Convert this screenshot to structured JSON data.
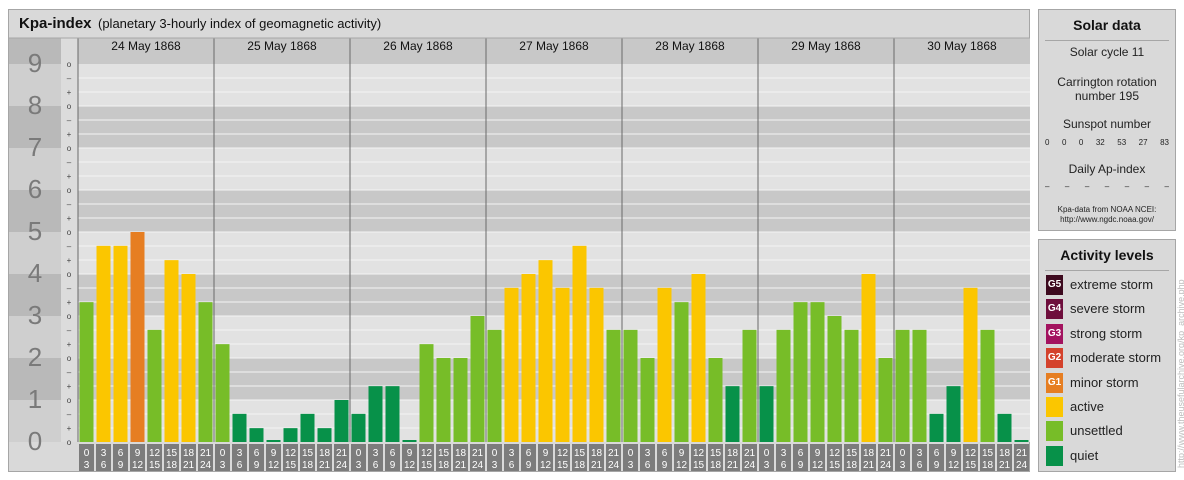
{
  "header": {
    "title": "Kpa-index",
    "subtitle": "(planetary 3-hourly index of geomagnetic activity)"
  },
  "chart_data": {
    "type": "bar",
    "y_ticks": [
      "0",
      "1",
      "2",
      "3",
      "4",
      "5",
      "6",
      "7",
      "8",
      "9"
    ],
    "sub_ticks": [
      "o",
      "+",
      "–"
    ],
    "ylim": [
      0,
      9
    ],
    "days": [
      "24 May 1868",
      "25 May 1868",
      "26 May 1868",
      "27 May 1868",
      "28 May 1868",
      "29 May 1868",
      "30 May 1868"
    ],
    "hour_labels": [
      [
        "0",
        "3"
      ],
      [
        "3",
        "6"
      ],
      [
        "6",
        "9"
      ],
      [
        "9",
        "12"
      ],
      [
        "12",
        "15"
      ],
      [
        "15",
        "18"
      ],
      [
        "18",
        "21"
      ],
      [
        "21",
        "24"
      ]
    ],
    "values": [
      [
        3.33,
        4.67,
        4.67,
        5.0,
        2.67,
        4.33,
        4.0,
        3.33
      ],
      [
        2.33,
        0.67,
        0.33,
        0.0,
        0.33,
        0.67,
        0.33,
        1.0
      ],
      [
        0.67,
        1.33,
        1.33,
        0.0,
        2.33,
        2.0,
        2.0,
        3.0
      ],
      [
        2.67,
        3.67,
        4.0,
        4.33,
        3.67,
        4.67,
        3.67,
        2.67
      ],
      [
        2.67,
        2.0,
        3.67,
        3.33,
        4.0,
        2.0,
        1.33,
        2.67
      ],
      [
        1.33,
        2.67,
        3.33,
        3.33,
        3.0,
        2.67,
        4.0,
        2.0
      ],
      [
        2.67,
        2.67,
        0.67,
        1.33,
        3.67,
        2.67,
        0.67,
        0.0
      ]
    ]
  },
  "solar": {
    "title": "Solar data",
    "cycle": "Solar cycle 11",
    "carrington_line1": "Carrington rotation",
    "carrington_line2": "number 195",
    "sunspot_title": "Sunspot number",
    "sunspots": [
      "0",
      "0",
      "0",
      "32",
      "53",
      "27",
      "83"
    ],
    "ap_title": "Daily Ap-index",
    "ap": [
      "–",
      "–",
      "–",
      "–",
      "–",
      "–",
      "–"
    ],
    "source_line1": "Kpa-data from NOAA NCEI:",
    "source_line2": "http://www.ngdc.noaa.gov/"
  },
  "legend": {
    "title": "Activity levels",
    "items": [
      {
        "badge": "G5",
        "label": "extreme storm",
        "color": "#3d0a1f"
      },
      {
        "badge": "G4",
        "label": "severe storm",
        "color": "#6e0e3c"
      },
      {
        "badge": "G3",
        "label": "strong storm",
        "color": "#a3135f"
      },
      {
        "badge": "G2",
        "label": "moderate storm",
        "color": "#d4422c"
      },
      {
        "badge": "G1",
        "label": "minor storm",
        "color": "#e67e22"
      },
      {
        "badge": "",
        "label": "active",
        "color": "#fbc600"
      },
      {
        "badge": "",
        "label": "unsettled",
        "color": "#77bd28"
      },
      {
        "badge": "",
        "label": "quiet",
        "color": "#079149"
      }
    ]
  },
  "colors": {
    "quiet": "#079149",
    "unsettled": "#77bd28",
    "active": "#fbc600",
    "minor_storm": "#e67e22"
  },
  "credit": "http://www.theusefularchive.org/kp_archive.php"
}
